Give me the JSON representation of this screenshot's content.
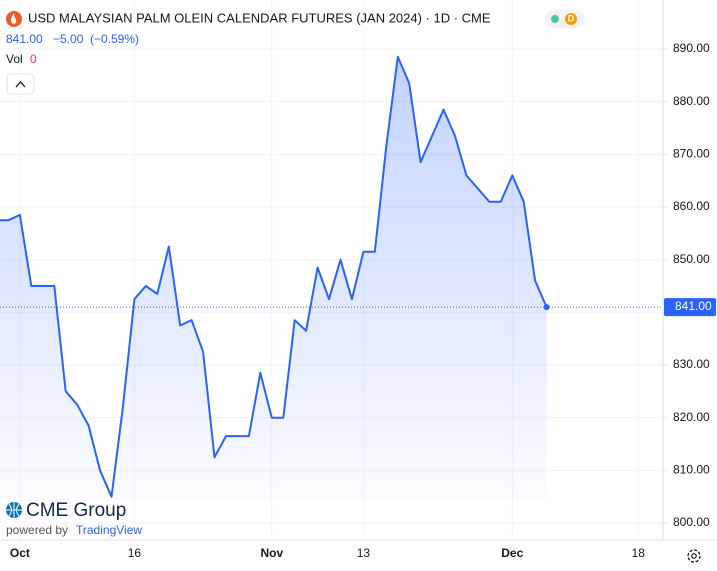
{
  "chart_data": {
    "type": "line",
    "title": "USD MALAYSIAN PALM OLEIN CALENDAR FUTURES (JAN 2024) · 1D · CME",
    "badge": "D",
    "header_price": "841.00",
    "header_change": "−5.00",
    "header_change_pct": "(−0.59%)",
    "volume_label": "Vol",
    "volume_value": "0",
    "last_value_label": "841.00",
    "logo_text": "CME Group",
    "powered_by": "powered by",
    "powered_brand": "TradingView",
    "categories": [
      null,
      null,
      "Oct",
      null,
      null,
      null,
      null,
      null,
      null,
      null,
      null,
      null,
      "16",
      null,
      null,
      null,
      null,
      null,
      null,
      null,
      null,
      null,
      null,
      null,
      "Nov",
      null,
      null,
      null,
      null,
      null,
      null,
      null,
      "13",
      null,
      null,
      null,
      null,
      null,
      null,
      null,
      null,
      null,
      null,
      null,
      null,
      "Dec",
      null,
      null,
      null,
      null,
      null,
      null,
      null,
      null,
      null,
      null,
      "18"
    ],
    "series": [
      {
        "name": "Price",
        "color": "#2962ff",
        "values": [
          857.5,
          857.5,
          858.5,
          845,
          845,
          845,
          825,
          822.5,
          818.5,
          810,
          805,
          822,
          842.5,
          845,
          843.5,
          852.5,
          837.5,
          838.5,
          832.5,
          812.5,
          816.5,
          816.5,
          816.5,
          828.5,
          820,
          820,
          838.5,
          836.5,
          848.5,
          842.5,
          850,
          842.5,
          851.5,
          851.5,
          871.5,
          888.5,
          883.5,
          868.5,
          873.5,
          878.5,
          873.5,
          866,
          863.5,
          861,
          861,
          866,
          861,
          846,
          841,
          null,
          null,
          null,
          null,
          null,
          null,
          null,
          null
        ]
      }
    ],
    "ylim": [
      800,
      890
    ],
    "yticks": [
      {
        "value": 800,
        "label": "800.00"
      },
      {
        "value": 810,
        "label": "810.00"
      },
      {
        "value": 820,
        "label": "820.00"
      },
      {
        "value": 830,
        "label": "830.00"
      },
      {
        "value": 840,
        "label": "840.00"
      },
      {
        "value": 850,
        "label": "850.00"
      },
      {
        "value": 860,
        "label": "860.00"
      },
      {
        "value": 870,
        "label": "870.00"
      },
      {
        "value": 880,
        "label": "880.00"
      },
      {
        "value": 890,
        "label": "890.00"
      }
    ],
    "grid": true
  }
}
